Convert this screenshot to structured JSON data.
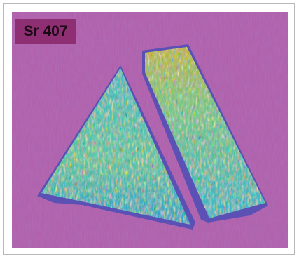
{
  "label": "Sr 407"
}
